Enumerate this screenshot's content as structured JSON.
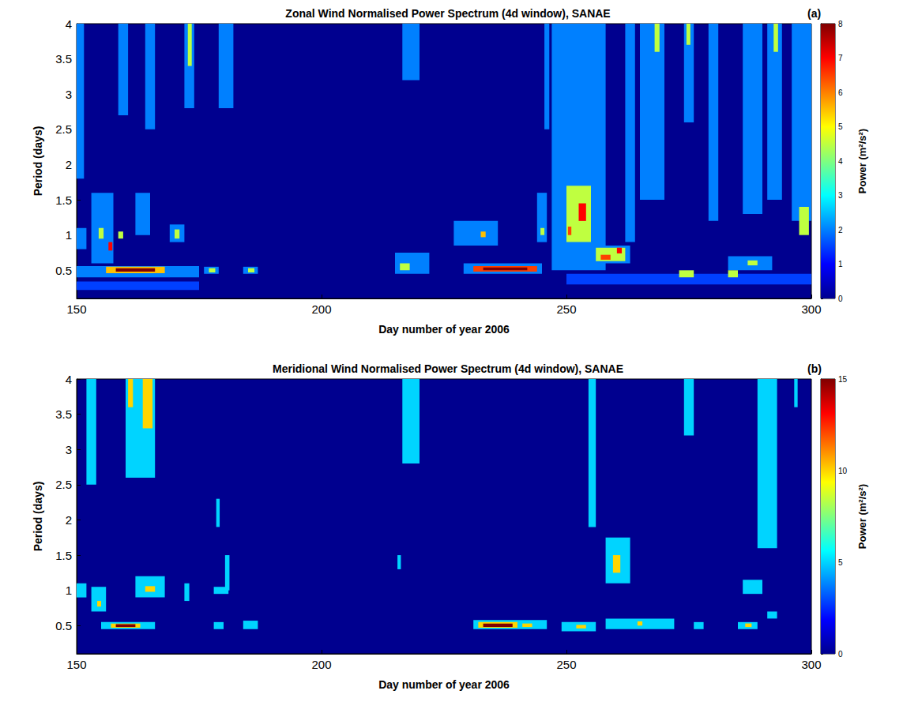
{
  "chart_data": [
    {
      "type": "heatmap",
      "title": "Zonal Wind Normalised Power Spectrum (4d window), SANAE",
      "panel": "(a)",
      "x_label": "Day number of year 2006",
      "y_label": "Period (days)",
      "xlim": [
        150,
        300
      ],
      "xticks": [
        150,
        200,
        250,
        300
      ],
      "ylim": [
        0.1,
        4
      ],
      "yticks": [
        0.5,
        1,
        1.5,
        2,
        2.5,
        3,
        3.5,
        4
      ],
      "colorbar": {
        "label": "Power (m²/s²)",
        "range": [
          0,
          8
        ],
        "ticks": [
          0,
          1,
          2,
          3,
          4,
          5,
          6,
          7,
          8
        ]
      },
      "cells": [
        [
          150,
          151.5,
          1.8,
          4,
          2
        ],
        [
          158.5,
          160.5,
          2.7,
          4,
          2
        ],
        [
          164,
          166,
          2.5,
          4,
          2
        ],
        [
          172,
          174,
          2.8,
          4,
          2
        ],
        [
          172.7,
          173.5,
          3.4,
          4,
          4.5
        ],
        [
          179,
          182,
          2.8,
          4,
          2
        ],
        [
          216.5,
          220,
          3.2,
          4,
          2
        ],
        [
          245.5,
          246.5,
          2.5,
          4,
          2
        ],
        [
          247,
          258,
          0.5,
          4,
          2
        ],
        [
          262,
          264,
          0.9,
          4,
          2
        ],
        [
          265,
          270,
          1.5,
          4,
          2
        ],
        [
          268,
          269,
          3.6,
          4,
          4.5
        ],
        [
          274,
          276,
          2.6,
          4,
          2
        ],
        [
          274.5,
          275.3,
          3.7,
          4,
          4.5
        ],
        [
          279,
          281,
          1.2,
          4,
          2
        ],
        [
          286,
          290,
          1.3,
          4,
          2
        ],
        [
          291,
          294,
          1.5,
          4,
          2
        ],
        [
          292.3,
          293.2,
          3.6,
          4,
          4.5
        ],
        [
          296,
          300,
          1.2,
          4,
          2
        ],
        [
          297.5,
          299.5,
          1.0,
          1.4,
          4.5
        ],
        [
          150,
          152,
          0.8,
          1.1,
          2
        ],
        [
          153,
          157.5,
          0.6,
          1.6,
          2
        ],
        [
          154.5,
          155.5,
          0.95,
          1.1,
          4.5
        ],
        [
          156.5,
          157.3,
          0.78,
          0.9,
          7
        ],
        [
          158.5,
          159.5,
          0.95,
          1.05,
          4.5
        ],
        [
          162,
          165,
          1.0,
          1.6,
          2
        ],
        [
          169,
          172,
          0.9,
          1.15,
          2
        ],
        [
          170,
          171,
          0.95,
          1.08,
          4.5
        ],
        [
          150,
          175,
          0.4,
          0.56,
          2
        ],
        [
          156,
          168,
          0.46,
          0.55,
          5.5
        ],
        [
          158,
          166,
          0.48,
          0.53,
          8
        ],
        [
          176,
          179,
          0.45,
          0.55,
          2
        ],
        [
          177,
          178.3,
          0.47,
          0.53,
          4.5
        ],
        [
          184,
          187,
          0.45,
          0.55,
          2
        ],
        [
          185,
          186.3,
          0.47,
          0.53,
          4.5
        ],
        [
          150,
          175,
          0.22,
          0.34,
          1.5
        ],
        [
          215,
          222,
          0.45,
          0.75,
          2
        ],
        [
          216,
          218,
          0.5,
          0.6,
          4.5
        ],
        [
          227,
          236,
          0.85,
          1.2,
          2
        ],
        [
          232.5,
          233.5,
          0.97,
          1.05,
          5.5
        ],
        [
          229,
          245,
          0.45,
          0.6,
          2
        ],
        [
          231,
          244,
          0.48,
          0.56,
          6.5
        ],
        [
          233,
          242,
          0.5,
          0.54,
          8
        ],
        [
          244,
          246,
          0.9,
          1.6,
          2
        ],
        [
          244.7,
          245.5,
          1.0,
          1.1,
          4.5
        ],
        [
          249,
          256,
          0.8,
          1.9,
          2
        ],
        [
          250,
          255,
          0.9,
          1.7,
          4.5
        ],
        [
          252.5,
          254,
          1.2,
          1.45,
          7
        ],
        [
          250.3,
          251,
          1.0,
          1.12,
          6.5
        ],
        [
          255,
          263,
          0.6,
          0.85,
          2
        ],
        [
          256,
          262,
          0.63,
          0.82,
          4.5
        ],
        [
          257,
          259,
          0.65,
          0.72,
          6.5
        ],
        [
          260.3,
          261.3,
          0.74,
          0.82,
          7
        ],
        [
          250,
          300,
          0.3,
          0.45,
          1.5
        ],
        [
          273,
          276,
          0.4,
          0.5,
          4.5
        ],
        [
          283,
          292,
          0.5,
          0.7,
          2
        ],
        [
          287,
          289,
          0.57,
          0.64,
          4.5
        ],
        [
          283,
          285,
          0.4,
          0.5,
          4.5
        ]
      ]
    },
    {
      "type": "heatmap",
      "title": "Meridional Wind Normalised Power Spectrum (4d window), SANAE",
      "panel": "(b)",
      "x_label": "Day number of year 2006",
      "y_label": "Period (days)",
      "xlim": [
        150,
        300
      ],
      "xticks": [
        150,
        200,
        250,
        300
      ],
      "ylim": [
        0.1,
        4
      ],
      "yticks": [
        0.5,
        1,
        1.5,
        2,
        2.5,
        3,
        3.5,
        4
      ],
      "colorbar": {
        "label": "Power (m²/s²)",
        "range": [
          0,
          15
        ],
        "ticks": [
          0,
          5,
          10,
          15
        ]
      },
      "cells": [
        [
          152,
          154,
          2.5,
          4,
          5
        ],
        [
          160,
          166,
          2.6,
          4,
          5
        ],
        [
          160.5,
          161.5,
          3.6,
          4,
          10
        ],
        [
          163.5,
          165.5,
          3.3,
          4,
          10
        ],
        [
          216.5,
          220,
          2.8,
          4,
          5
        ],
        [
          254.5,
          256,
          1.9,
          4,
          5
        ],
        [
          274,
          276,
          3.2,
          4,
          5
        ],
        [
          289,
          293,
          1.6,
          4,
          5
        ],
        [
          296.5,
          297.2,
          3.6,
          4,
          5
        ],
        [
          178.5,
          179.2,
          1.9,
          2.3,
          5
        ],
        [
          150,
          152,
          0.9,
          1.1,
          5
        ],
        [
          153,
          156,
          0.7,
          1.05,
          5
        ],
        [
          154.2,
          155,
          0.77,
          0.85,
          10
        ],
        [
          162,
          168,
          0.9,
          1.2,
          5
        ],
        [
          164,
          166,
          0.98,
          1.06,
          10
        ],
        [
          172,
          173,
          0.85,
          1.1,
          5
        ],
        [
          178,
          181,
          0.95,
          1.05,
          5
        ],
        [
          180.3,
          181.2,
          1.0,
          1.5,
          5
        ],
        [
          155,
          166,
          0.45,
          0.55,
          5
        ],
        [
          157,
          163,
          0.47,
          0.53,
          10
        ],
        [
          158,
          162,
          0.48,
          0.52,
          15
        ],
        [
          178,
          180,
          0.45,
          0.55,
          5
        ],
        [
          184,
          187,
          0.45,
          0.57,
          5
        ],
        [
          215.5,
          216.2,
          1.3,
          1.5,
          5
        ],
        [
          231,
          246,
          0.45,
          0.58,
          5
        ],
        [
          232,
          240,
          0.47,
          0.55,
          10
        ],
        [
          233,
          239,
          0.48,
          0.53,
          15
        ],
        [
          241,
          243,
          0.48,
          0.53,
          10
        ],
        [
          249,
          256,
          0.42,
          0.55,
          5
        ],
        [
          252,
          254,
          0.46,
          0.51,
          10
        ],
        [
          258,
          263,
          1.1,
          1.75,
          5
        ],
        [
          259.5,
          261,
          1.25,
          1.5,
          10
        ],
        [
          258,
          272,
          0.45,
          0.6,
          5
        ],
        [
          264.5,
          265.5,
          0.5,
          0.56,
          10
        ],
        [
          276,
          278,
          0.45,
          0.55,
          5
        ],
        [
          285,
          289,
          0.45,
          0.55,
          5
        ],
        [
          286.5,
          287.8,
          0.48,
          0.53,
          10
        ],
        [
          286,
          290,
          0.95,
          1.15,
          5
        ],
        [
          291,
          293,
          0.6,
          0.7,
          5
        ]
      ]
    }
  ]
}
